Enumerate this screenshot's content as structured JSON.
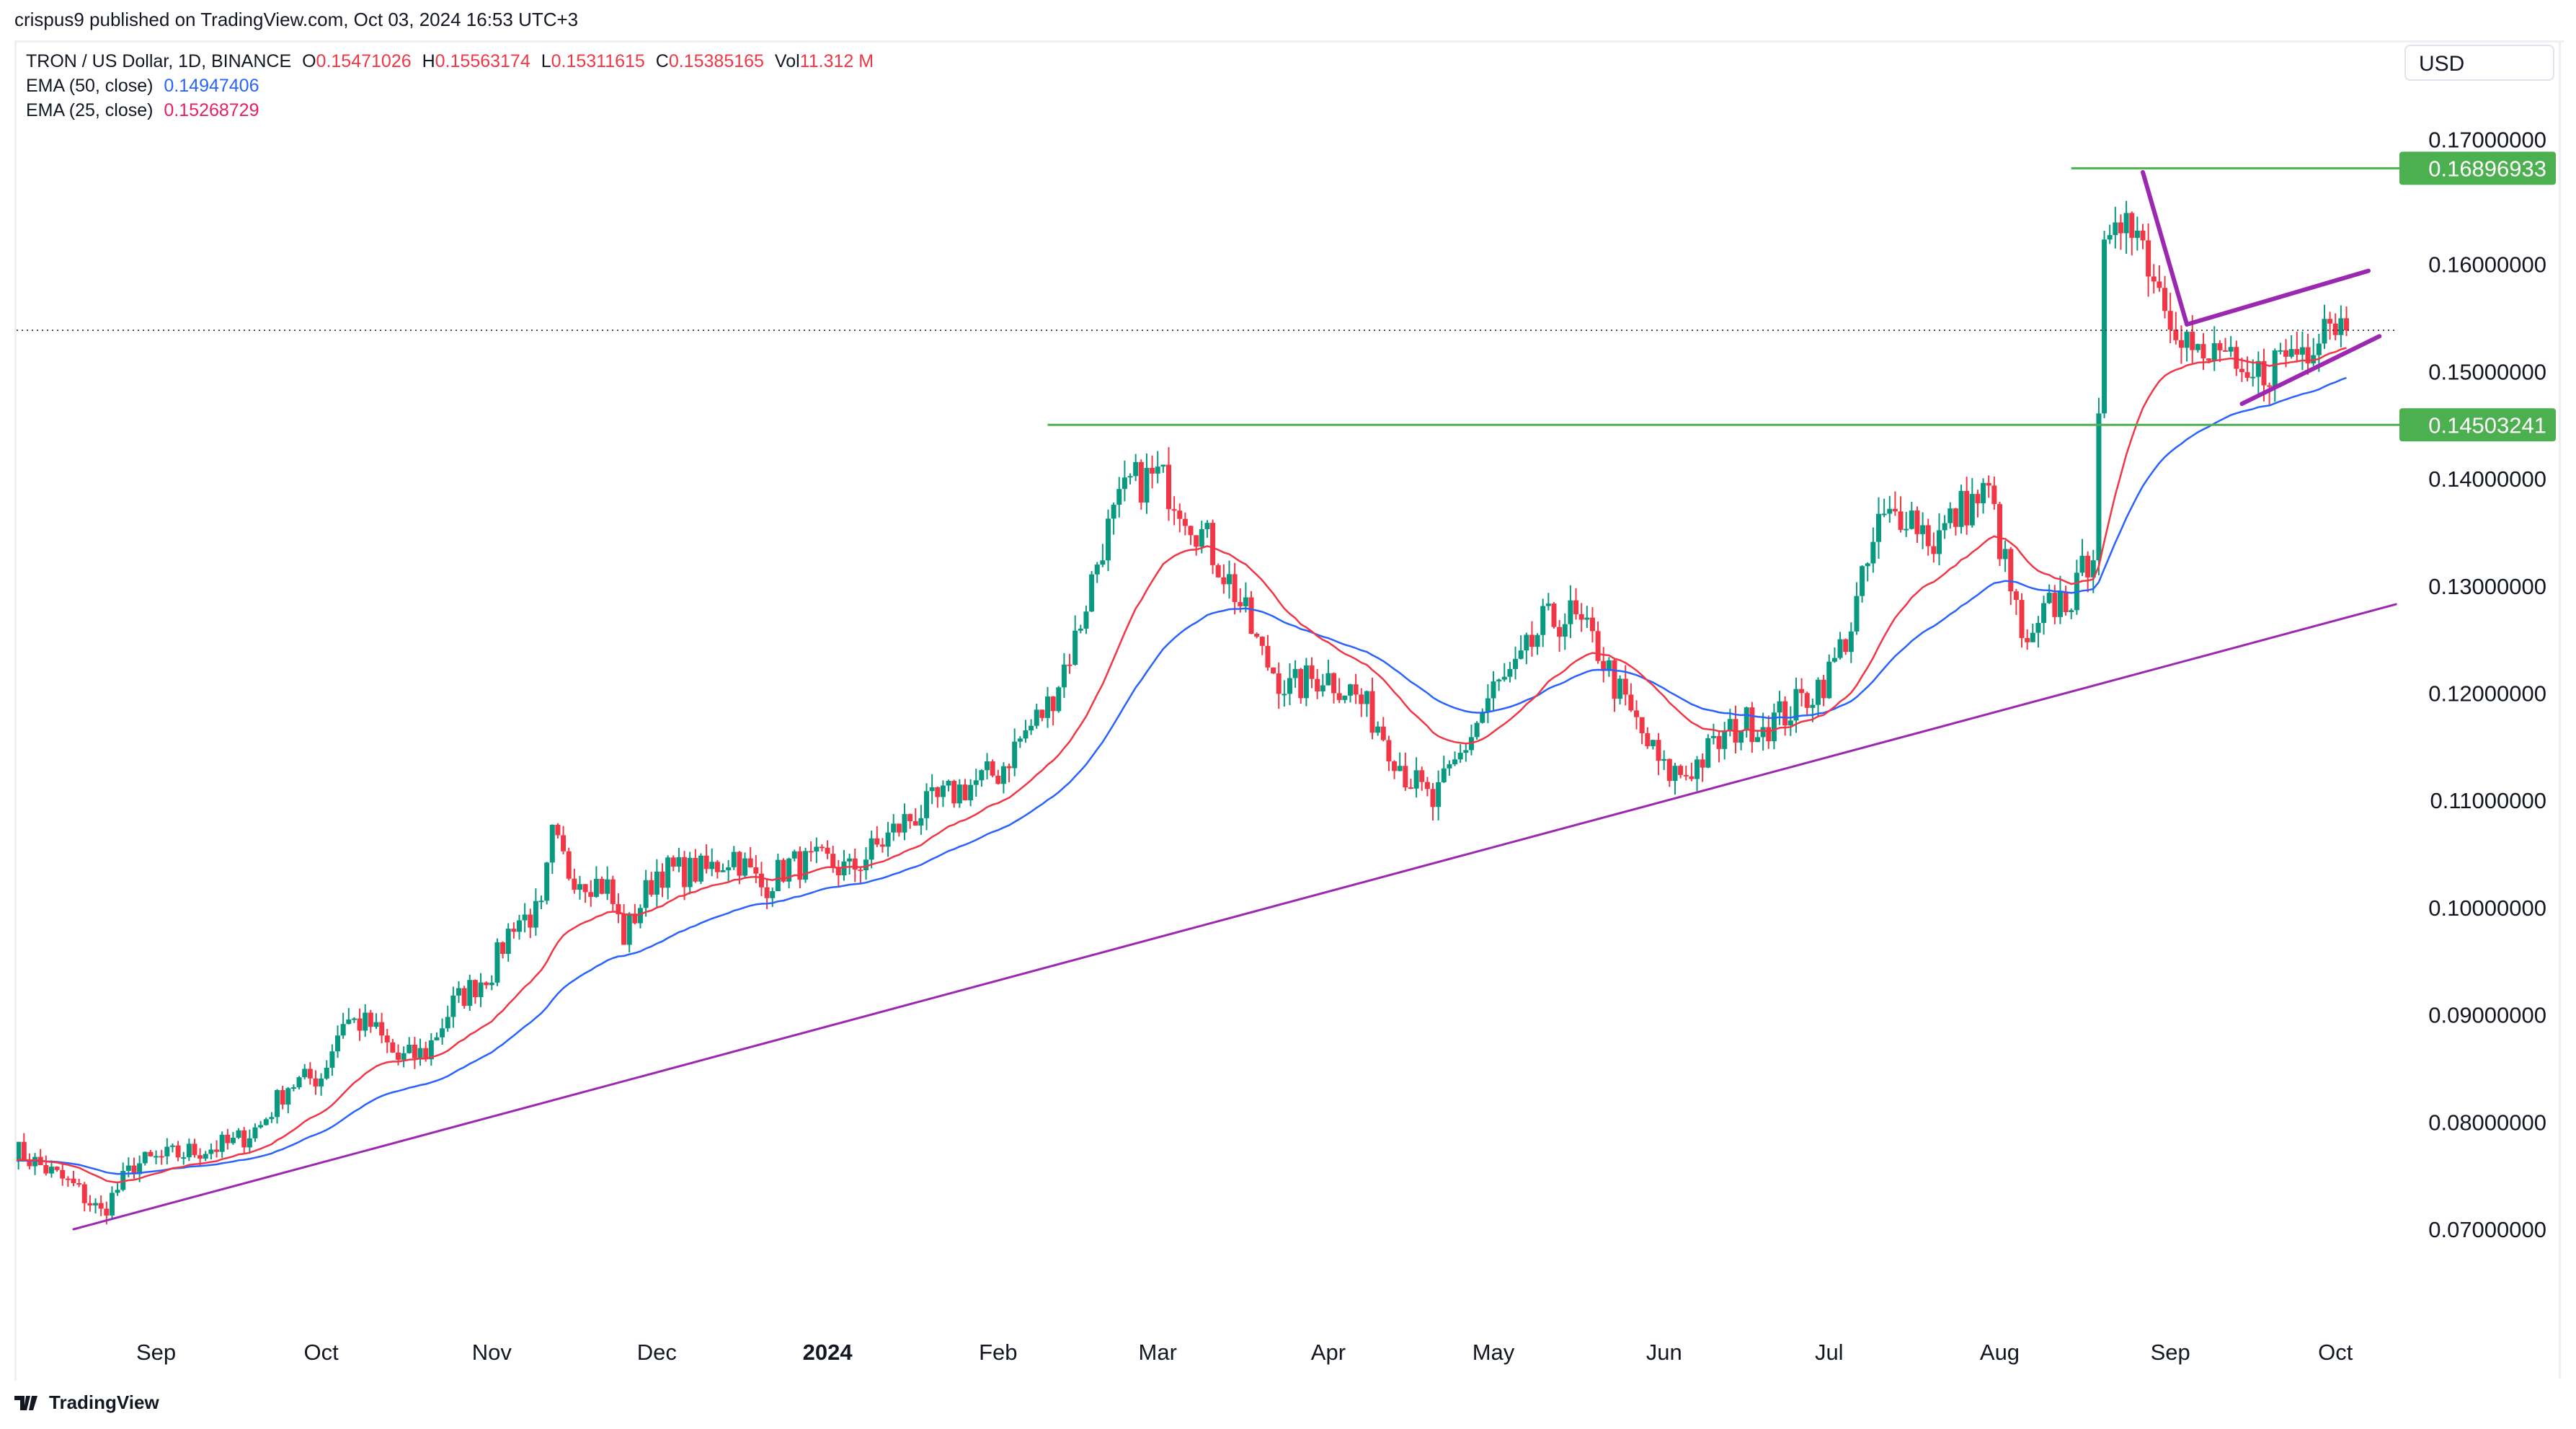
{
  "header": {
    "published": "crispus9 published on TradingView.com, Oct 03, 2024 16:53 UTC+3"
  },
  "legend": {
    "symbol": "TRON / US Dollar, 1D, BINANCE",
    "o_label": "O",
    "o": "0.15471026",
    "h_label": "H",
    "h": "0.15563174",
    "l_label": "L",
    "l": "0.15311615",
    "c_label": "C",
    "c": "0.15385165",
    "vol_label": "Vol",
    "vol": "11.312 M",
    "ema50_label": "EMA (50, close)",
    "ema50": "0.14947406",
    "ema25_label": "EMA (25, close)",
    "ema25": "0.15268729"
  },
  "currency_button": "USD",
  "branding": "TradingView",
  "colors": {
    "up": "#089981",
    "down": "#f23645",
    "ema50": "#2962ff",
    "ema25": "#f23645",
    "trendline": "#9c27b0",
    "level": "#4caf50"
  },
  "chart_data": {
    "type": "candlestick",
    "interval": "1D",
    "ylim": [
      0.063,
      0.172
    ],
    "y_ticks": [
      "0.07000000",
      "0.08000000",
      "0.09000000",
      "0.10000000",
      "0.11000000",
      "0.12000000",
      "0.13000000",
      "0.14000000",
      "0.15000000",
      "0.16000000",
      "0.17000000"
    ],
    "x_ticks": [
      {
        "label": "Sep",
        "date": "2023-09-01"
      },
      {
        "label": "Oct",
        "date": "2023-10-01"
      },
      {
        "label": "Nov",
        "date": "2023-11-01"
      },
      {
        "label": "Dec",
        "date": "2023-12-01"
      },
      {
        "label": "2024",
        "date": "2024-01-01",
        "bold": true
      },
      {
        "label": "Feb",
        "date": "2024-02-01"
      },
      {
        "label": "Mar",
        "date": "2024-03-01"
      },
      {
        "label": "Apr",
        "date": "2024-04-01"
      },
      {
        "label": "May",
        "date": "2024-05-01"
      },
      {
        "label": "Jun",
        "date": "2024-06-01"
      },
      {
        "label": "Jul",
        "date": "2024-07-01"
      },
      {
        "label": "Aug",
        "date": "2024-08-01"
      },
      {
        "label": "Sep",
        "date": "2024-09-01"
      },
      {
        "label": "Oct",
        "date": "2024-10-01"
      }
    ],
    "approx_close": [
      [
        "2023-08-06",
        0.0775
      ],
      [
        "2023-08-17",
        0.074
      ],
      [
        "2023-08-22",
        0.0715
      ],
      [
        "2023-08-28",
        0.076
      ],
      [
        "2023-09-05",
        0.077
      ],
      [
        "2023-09-15",
        0.078
      ],
      [
        "2023-09-20",
        0.0797
      ],
      [
        "2023-09-25",
        0.0835
      ],
      [
        "2023-10-01",
        0.0843
      ],
      [
        "2023-10-05",
        0.0896
      ],
      [
        "2023-10-10",
        0.089
      ],
      [
        "2023-10-15",
        0.0858
      ],
      [
        "2023-10-20",
        0.0865
      ],
      [
        "2023-10-25",
        0.091
      ],
      [
        "2023-11-01",
        0.0942
      ],
      [
        "2023-11-05",
        0.0988
      ],
      [
        "2023-11-10",
        0.0995
      ],
      [
        "2023-11-12",
        0.1065
      ],
      [
        "2023-11-15",
        0.1034
      ],
      [
        "2023-11-22",
        0.1019
      ],
      [
        "2023-11-25",
        0.0973
      ],
      [
        "2023-12-01",
        0.1034
      ],
      [
        "2023-12-10",
        0.1034
      ],
      [
        "2023-12-15",
        0.105
      ],
      [
        "2023-12-20",
        0.1019
      ],
      [
        "2023-12-25",
        0.104
      ],
      [
        "2024-01-01",
        0.1042
      ],
      [
        "2024-01-05",
        0.1034
      ],
      [
        "2024-01-10",
        0.1057
      ],
      [
        "2024-01-15",
        0.108
      ],
      [
        "2024-01-20",
        0.1096
      ],
      [
        "2024-01-25",
        0.111
      ],
      [
        "2024-02-01",
        0.1126
      ],
      [
        "2024-02-05",
        0.1157
      ],
      [
        "2024-02-10",
        0.1188
      ],
      [
        "2024-02-15",
        0.125
      ],
      [
        "2024-02-20",
        0.1341
      ],
      [
        "2024-02-25",
        0.1395
      ],
      [
        "2024-03-01",
        0.1402
      ],
      [
        "2024-03-05",
        0.138
      ],
      [
        "2024-03-10",
        0.1341
      ],
      [
        "2024-03-15",
        0.1295
      ],
      [
        "2024-03-20",
        0.1234
      ],
      [
        "2024-03-25",
        0.1203
      ],
      [
        "2024-03-31",
        0.1218
      ],
      [
        "2024-04-05",
        0.1203
      ],
      [
        "2024-04-10",
        0.1172
      ],
      [
        "2024-04-15",
        0.1126
      ],
      [
        "2024-04-20",
        0.1096
      ],
      [
        "2024-04-25",
        0.1142
      ],
      [
        "2024-05-01",
        0.1203
      ],
      [
        "2024-05-05",
        0.1218
      ],
      [
        "2024-05-10",
        0.1264
      ],
      [
        "2024-05-15",
        0.1272
      ],
      [
        "2024-05-20",
        0.1241
      ],
      [
        "2024-05-25",
        0.1188
      ],
      [
        "2024-06-01",
        0.1126
      ],
      [
        "2024-06-05",
        0.1126
      ],
      [
        "2024-06-10",
        0.1149
      ],
      [
        "2024-06-15",
        0.1172
      ],
      [
        "2024-06-20",
        0.1172
      ],
      [
        "2024-06-25",
        0.1188
      ],
      [
        "2024-07-01",
        0.1218
      ],
      [
        "2024-07-05",
        0.1264
      ],
      [
        "2024-07-10",
        0.1356
      ],
      [
        "2024-07-15",
        0.1372
      ],
      [
        "2024-07-20",
        0.1341
      ],
      [
        "2024-07-25",
        0.1372
      ],
      [
        "2024-07-30",
        0.1387
      ],
      [
        "2024-08-03",
        0.1295
      ],
      [
        "2024-08-06",
        0.1234
      ],
      [
        "2024-08-10",
        0.128
      ],
      [
        "2024-08-15",
        0.1295
      ],
      [
        "2024-08-18",
        0.1341
      ],
      [
        "2024-08-20",
        0.1602
      ],
      [
        "2024-08-22",
        0.1617
      ],
      [
        "2024-08-24",
        0.1663
      ],
      [
        "2024-08-26",
        0.1633
      ],
      [
        "2024-08-30",
        0.1579
      ],
      [
        "2024-09-03",
        0.1541
      ],
      [
        "2024-09-07",
        0.1502
      ],
      [
        "2024-09-10",
        0.1525
      ],
      [
        "2024-09-14",
        0.1479
      ],
      [
        "2024-09-18",
        0.1502
      ],
      [
        "2024-09-22",
        0.1517
      ],
      [
        "2024-09-26",
        0.1525
      ],
      [
        "2024-09-29",
        0.1556
      ],
      [
        "2024-10-01",
        0.1548
      ],
      [
        "2024-10-03",
        0.15385165
      ]
    ],
    "indicators": [
      {
        "name": "EMA (50, close)",
        "period": 50
      },
      {
        "name": "EMA (25, close)",
        "period": 25
      }
    ],
    "last_price": 0.15385165,
    "horizontal_levels": [
      {
        "label": "0.16896933",
        "price": 0.16896933,
        "from": "2024-08-14"
      },
      {
        "label": "0.14503241",
        "price": 0.14503241,
        "from": "2024-02-10"
      }
    ],
    "trendlines": [
      {
        "from": [
          "2023-08-17",
          0.07
        ],
        "to": [
          "2024-10-12",
          0.1283
        ],
        "width": "thin"
      },
      {
        "from": [
          "2024-08-27",
          0.1686
        ],
        "to": [
          "2024-09-04",
          0.1544
        ],
        "width": "thick"
      },
      {
        "from": [
          "2024-09-04",
          0.1544
        ],
        "to": [
          "2024-10-07",
          0.1594
        ],
        "width": "thick"
      },
      {
        "from": [
          "2024-09-14",
          0.147
        ],
        "to": [
          "2024-10-09",
          0.1533
        ],
        "width": "thick"
      }
    ]
  }
}
